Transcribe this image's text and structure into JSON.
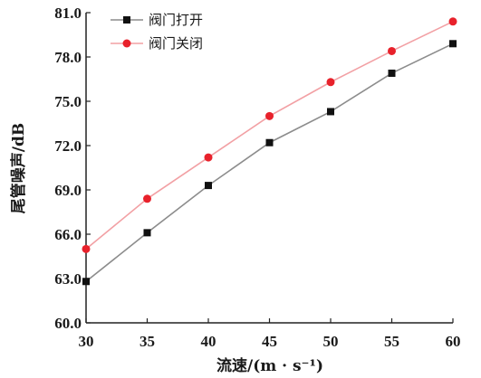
{
  "chart_data": {
    "type": "line",
    "title": "",
    "xlabel": "流速/(m · s⁻¹)",
    "ylabel": "尾管噪声/dB",
    "x": [
      30,
      35,
      40,
      45,
      50,
      55,
      60
    ],
    "xlim": [
      30,
      60
    ],
    "ylim": [
      60.0,
      81.0
    ],
    "x_ticks": [
      "30",
      "35",
      "40",
      "45",
      "50",
      "55",
      "60"
    ],
    "y_ticks": [
      "60.0",
      "63.0",
      "66.0",
      "69.0",
      "72.0",
      "75.0",
      "78.0",
      "81.0"
    ],
    "grid": false,
    "legend_position": "top-left",
    "series": [
      {
        "name": "阀门打开",
        "marker": "square",
        "marker_color": "#111111",
        "line_color": "#8c8c8c",
        "values": [
          62.8,
          66.1,
          69.3,
          72.2,
          74.3,
          76.9,
          78.9
        ]
      },
      {
        "name": "阀门关闭",
        "marker": "circle",
        "marker_color": "#e8212b",
        "line_color": "#f2a0a4",
        "values": [
          65.0,
          68.4,
          71.2,
          74.0,
          76.3,
          78.4,
          80.4
        ]
      }
    ]
  }
}
